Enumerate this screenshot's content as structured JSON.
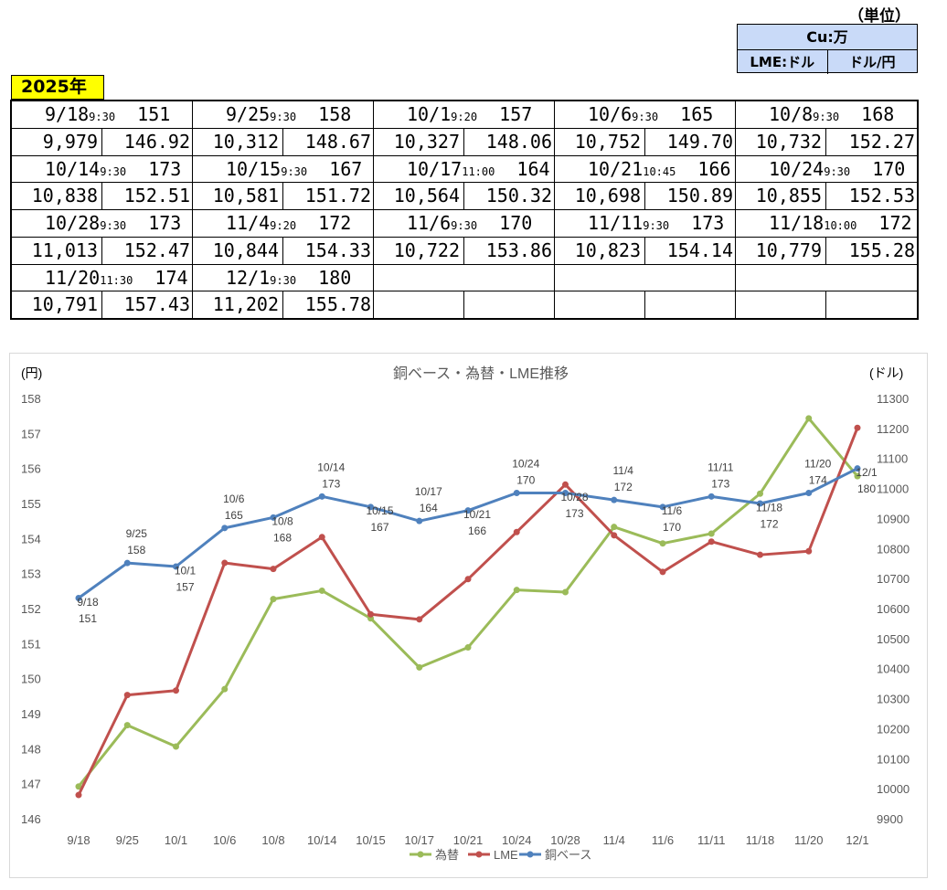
{
  "unit": {
    "label": "（単位）",
    "cu": "Cu:万",
    "lme": "LME:ドル",
    "fx": "ドル/円"
  },
  "year": "2025年",
  "table": {
    "entries": [
      {
        "date": "9/18",
        "time": "9:30",
        "base": "151",
        "lme": "9,979",
        "fx": "146.92"
      },
      {
        "date": "9/25",
        "time": "9:30",
        "base": "158",
        "lme": "10,312",
        "fx": "148.67"
      },
      {
        "date": "10/1",
        "time": "9:20",
        "base": "157",
        "lme": "10,327",
        "fx": "148.06"
      },
      {
        "date": "10/6",
        "time": "9:30",
        "base": "165",
        "lme": "10,752",
        "fx": "149.70"
      },
      {
        "date": "10/8",
        "time": "9:30",
        "base": "168",
        "lme": "10,732",
        "fx": "152.27"
      },
      {
        "date": "10/14",
        "time": "9:30",
        "base": "173",
        "lme": "10,838",
        "fx": "152.51"
      },
      {
        "date": "10/15",
        "time": "9:30",
        "base": "167",
        "lme": "10,581",
        "fx": "151.72"
      },
      {
        "date": "10/17",
        "time": "11:00",
        "base": "164",
        "lme": "10,564",
        "fx": "150.32"
      },
      {
        "date": "10/21",
        "time": "10:45",
        "base": "166",
        "lme": "10,698",
        "fx": "150.89"
      },
      {
        "date": "10/24",
        "time": "9:30",
        "base": "170",
        "lme": "10,855",
        "fx": "152.53"
      },
      {
        "date": "10/28",
        "time": "9:30",
        "base": "173",
        "lme": "11,013",
        "fx": "152.47"
      },
      {
        "date": "11/4",
        "time": "9:20",
        "base": "172",
        "lme": "10,844",
        "fx": "154.33"
      },
      {
        "date": "11/6",
        "time": "9:30",
        "base": "170",
        "lme": "10,722",
        "fx": "153.86"
      },
      {
        "date": "11/11",
        "time": "9:30",
        "base": "173",
        "lme": "10,823",
        "fx": "154.14"
      },
      {
        "date": "11/18",
        "time": "10:00",
        "base": "172",
        "lme": "10,779",
        "fx": "155.28"
      },
      {
        "date": "11/20",
        "time": "11:30",
        "base": "174",
        "lme": "10,791",
        "fx": "157.43"
      },
      {
        "date": "12/1",
        "time": "9:30",
        "base": "180",
        "lme": "11,202",
        "fx": "155.78"
      }
    ]
  },
  "chart_data": {
    "type": "line",
    "title": "銅ベース・為替・LME推移",
    "ylabel_left": "(円)",
    "ylabel_right": "(ドル)",
    "categories": [
      "9/18",
      "9/25",
      "10/1",
      "10/6",
      "10/8",
      "10/14",
      "10/15",
      "10/17",
      "10/21",
      "10/24",
      "10/28",
      "11/4",
      "11/6",
      "11/11",
      "11/18",
      "11/20",
      "12/1"
    ],
    "ylim_left": [
      146,
      158
    ],
    "yticks_left": [
      146,
      147,
      148,
      149,
      150,
      151,
      152,
      153,
      154,
      155,
      156,
      157,
      158
    ],
    "ylim_right": [
      9900,
      11300
    ],
    "yticks_right": [
      9900,
      10000,
      10100,
      10200,
      10300,
      10400,
      10500,
      10600,
      10700,
      10800,
      10900,
      11000,
      11100,
      11200,
      11300
    ],
    "series": [
      {
        "name": "為替",
        "axis": "left",
        "color": "#9bbb59",
        "values": [
          146.92,
          148.67,
          148.06,
          149.7,
          152.27,
          152.51,
          151.72,
          150.32,
          150.89,
          152.53,
          152.47,
          154.33,
          153.86,
          154.14,
          155.28,
          157.43,
          155.78
        ]
      },
      {
        "name": "LME",
        "axis": "right",
        "color": "#c0504d",
        "values": [
          9979,
          10312,
          10327,
          10752,
          10732,
          10838,
          10581,
          10564,
          10698,
          10855,
          11013,
          10844,
          10722,
          10823,
          10779,
          10791,
          11202
        ]
      },
      {
        "name": "銅ベース",
        "axis": "left",
        "color": "#4f81bd",
        "values": [
          152.3,
          153.3,
          153.2,
          154.3,
          154.6,
          155.2,
          154.9,
          154.5,
          154.8,
          155.3,
          155.3,
          155.1,
          154.9,
          155.2,
          155.0,
          155.3,
          156.0
        ]
      }
    ],
    "annotations": [
      {
        "date": "9/18",
        "value": "151"
      },
      {
        "date": "9/25",
        "value": "158"
      },
      {
        "date": "10/1",
        "value": "157"
      },
      {
        "date": "10/6",
        "value": "165"
      },
      {
        "date": "10/8",
        "value": "168"
      },
      {
        "date": "10/14",
        "value": "173"
      },
      {
        "date": "10/15",
        "value": "167"
      },
      {
        "date": "10/17",
        "value": "164"
      },
      {
        "date": "10/21",
        "value": "166"
      },
      {
        "date": "10/24",
        "value": "170"
      },
      {
        "date": "10/28",
        "value": "173"
      },
      {
        "date": "11/4",
        "value": "172"
      },
      {
        "date": "11/6",
        "value": "170"
      },
      {
        "date": "11/11",
        "value": "173"
      },
      {
        "date": "11/18",
        "value": "172"
      },
      {
        "date": "11/20",
        "value": "174"
      },
      {
        "date": "12/1",
        "value": "180"
      }
    ],
    "legend_position": "bottom"
  }
}
